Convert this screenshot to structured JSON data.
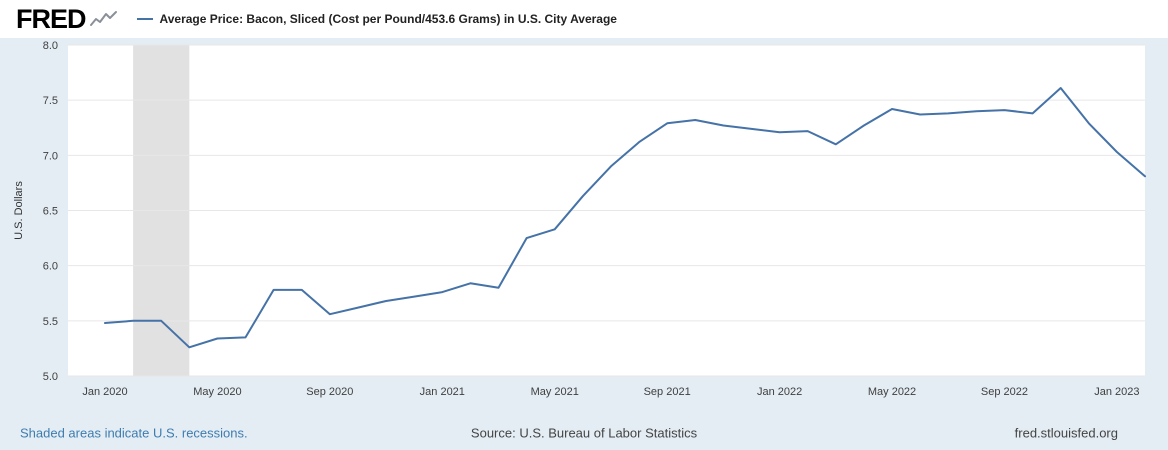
{
  "header": {
    "logo": "FRED",
    "legend_label": "Average Price: Bacon, Sliced (Cost per Pound/453.6 Grams) in U.S. City Average"
  },
  "footer": {
    "recession_note": "Shaded areas indicate U.S. recessions.",
    "source": "Source: U.S. Bureau of Labor Statistics",
    "site": "fred.stlouisfed.org"
  },
  "colors": {
    "line": "#4572a7",
    "recession_band": "#e1e1e1",
    "background": "#e4edf4",
    "plot_bg": "#ffffff",
    "grid": "#e7e7e7",
    "link": "#3e7cb0"
  },
  "chart_data": {
    "type": "line",
    "title": "Average Price: Bacon, Sliced (Cost per Pound/453.6 Grams) in U.S. City Average",
    "ylabel": "U.S. Dollars",
    "ylim": [
      5.0,
      8.0
    ],
    "y_ticks": [
      "8.0",
      "7.5",
      "7.0",
      "6.5",
      "6.0",
      "5.5",
      "5.0"
    ],
    "x_tick_labels": [
      "Jan 2020",
      "May 2020",
      "Sep 2020",
      "Jan 2021",
      "May 2021",
      "Sep 2021",
      "Jan 2022",
      "May 2022",
      "Sep 2022",
      "Jan 2023"
    ],
    "x_tick_month_indices": [
      0,
      4,
      8,
      12,
      16,
      20,
      24,
      28,
      32,
      36
    ],
    "months": [
      "2020-01",
      "2020-02",
      "2020-03",
      "2020-04",
      "2020-05",
      "2020-06",
      "2020-07",
      "2020-08",
      "2020-09",
      "2020-10",
      "2020-11",
      "2020-12",
      "2021-01",
      "2021-02",
      "2021-03",
      "2021-04",
      "2021-05",
      "2021-06",
      "2021-07",
      "2021-08",
      "2021-09",
      "2021-10",
      "2021-11",
      "2021-12",
      "2022-01",
      "2022-02",
      "2022-03",
      "2022-04",
      "2022-05",
      "2022-06",
      "2022-07",
      "2022-08",
      "2022-09",
      "2022-10",
      "2022-11",
      "2022-12",
      "2023-01",
      "2023-02"
    ],
    "values": [
      5.48,
      5.5,
      5.5,
      5.26,
      5.34,
      5.35,
      5.78,
      5.78,
      5.56,
      5.62,
      5.68,
      5.72,
      5.76,
      5.84,
      5.8,
      6.25,
      6.33,
      6.63,
      6.9,
      7.12,
      7.29,
      7.32,
      7.27,
      7.24,
      7.21,
      7.22,
      7.1,
      7.27,
      7.42,
      7.37,
      7.38,
      7.4,
      7.41,
      7.38,
      7.61,
      7.29,
      7.03,
      6.81
    ],
    "recession_bands": [
      {
        "start": "2020-02",
        "end": "2020-04",
        "start_index": 1,
        "end_index": 3
      }
    ],
    "grid": true,
    "legend_position": "top"
  }
}
